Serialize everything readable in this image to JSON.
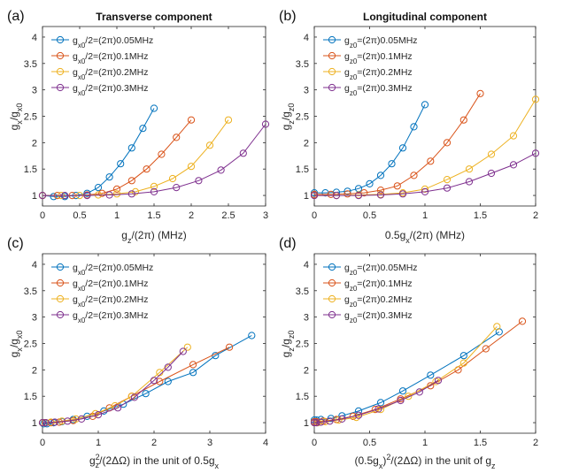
{
  "colors": [
    "#0072BD",
    "#D95319",
    "#EDB120",
    "#7E2F8E"
  ],
  "chart_data": [
    {
      "panel": "(a)",
      "type": "line",
      "title": "Transverse component",
      "xlabel": "g_z/(2π) (MHz)",
      "ylabel": "g_x/g_x0",
      "xlim": [
        0,
        3
      ],
      "ylim": [
        0.8,
        4.2
      ],
      "xticks": [
        0,
        0.5,
        1,
        1.5,
        2,
        2.5,
        3
      ],
      "xtick_labels": [
        "0",
        "0.5",
        "1",
        "1.5",
        "2",
        "2.5",
        "3"
      ],
      "yticks": [
        1,
        1.5,
        2,
        2.5,
        3,
        3.5,
        4
      ],
      "ytick_labels": [
        "1",
        "1.5",
        "2",
        "2.5",
        "3",
        "3.5",
        "4"
      ],
      "legend_position": "top-left",
      "series": [
        {
          "name": "g_x0/2=(2π)0.05MHz",
          "x": [
            0,
            0.15,
            0.3,
            0.45,
            0.6,
            0.75,
            0.9,
            1.05,
            1.2,
            1.35,
            1.5
          ],
          "y": [
            1,
            0.98,
            0.98,
            1.0,
            1.04,
            1.15,
            1.35,
            1.6,
            1.9,
            2.27,
            2.65
          ]
        },
        {
          "name": "g_x0/2=(2π)0.1MHz",
          "x": [
            0,
            0.2,
            0.4,
            0.6,
            0.8,
            1.0,
            1.2,
            1.4,
            1.6,
            1.8,
            2.0
          ],
          "y": [
            1,
            1.0,
            1.0,
            1.01,
            1.04,
            1.12,
            1.28,
            1.5,
            1.78,
            2.1,
            2.43
          ]
        },
        {
          "name": "g_x0/2=(2π)0.2MHz",
          "x": [
            0,
            0.25,
            0.5,
            0.75,
            1.0,
            1.25,
            1.5,
            1.75,
            2.0,
            2.25,
            2.5
          ],
          "y": [
            1,
            1.0,
            1.0,
            1.01,
            1.03,
            1.07,
            1.17,
            1.32,
            1.55,
            1.95,
            2.43
          ]
        },
        {
          "name": "g_x0/2=(2π)0.3MHz",
          "x": [
            0,
            0.3,
            0.6,
            0.9,
            1.2,
            1.5,
            1.8,
            2.1,
            2.4,
            2.7,
            3.0
          ],
          "y": [
            1,
            1.0,
            1.0,
            1.01,
            1.03,
            1.07,
            1.15,
            1.28,
            1.48,
            1.8,
            2.35
          ]
        }
      ]
    },
    {
      "panel": "(b)",
      "type": "line",
      "title": "Longitudinal component",
      "xlabel": "0.5g_x/(2π) (MHz)",
      "ylabel": "g_z/g_z0",
      "xlim": [
        0,
        2
      ],
      "ylim": [
        0.8,
        4.2
      ],
      "xticks": [
        0,
        0.5,
        1,
        1.5,
        2
      ],
      "xtick_labels": [
        "0",
        "0.5",
        "1",
        "1.5",
        "2"
      ],
      "yticks": [
        1,
        1.5,
        2,
        2.5,
        3,
        3.5,
        4
      ],
      "ytick_labels": [
        "1",
        "1.5",
        "2",
        "2.5",
        "3",
        "3.5",
        "4"
      ],
      "legend_position": "top-left",
      "series": [
        {
          "name": "g_z0=(2π)0.05MHz",
          "x": [
            0,
            0.1,
            0.2,
            0.3,
            0.4,
            0.5,
            0.6,
            0.7,
            0.8,
            0.9,
            1.0
          ],
          "y": [
            1.05,
            1.05,
            1.06,
            1.08,
            1.13,
            1.22,
            1.38,
            1.6,
            1.9,
            2.3,
            2.72
          ]
        },
        {
          "name": "g_z0=(2π)0.1MHz",
          "x": [
            0,
            0.15,
            0.3,
            0.45,
            0.6,
            0.75,
            0.9,
            1.05,
            1.2,
            1.35,
            1.5
          ],
          "y": [
            1.02,
            1.02,
            1.03,
            1.05,
            1.1,
            1.18,
            1.38,
            1.65,
            2.0,
            2.43,
            2.93
          ]
        },
        {
          "name": "g_z0=(2π)0.2MHz",
          "x": [
            0,
            0.2,
            0.4,
            0.6,
            0.8,
            1.0,
            1.2,
            1.4,
            1.6,
            1.8,
            2.0
          ],
          "y": [
            1.0,
            1.0,
            1.01,
            1.02,
            1.05,
            1.12,
            1.3,
            1.5,
            1.78,
            2.13,
            2.82
          ]
        },
        {
          "name": "g_z0=(2π)0.3MHz",
          "x": [
            0,
            0.2,
            0.4,
            0.6,
            0.8,
            1.0,
            1.2,
            1.4,
            1.6,
            1.8,
            2.0
          ],
          "y": [
            1.0,
            1.0,
            1.0,
            1.01,
            1.03,
            1.07,
            1.14,
            1.26,
            1.42,
            1.58,
            1.8
          ]
        }
      ]
    },
    {
      "panel": "(c)",
      "type": "line",
      "title": "",
      "xlabel": "g_z^2/(2ΔΩ)  in the unit of 0.5g_x",
      "ylabel": "g_x/g_x0",
      "xlim": [
        0,
        4
      ],
      "ylim": [
        0.8,
        4.2
      ],
      "xticks": [
        0,
        1,
        2,
        3,
        4
      ],
      "xtick_labels": [
        "0",
        "1",
        "2",
        "3",
        "4"
      ],
      "yticks": [
        1,
        1.5,
        2,
        2.5,
        3,
        3.5,
        4
      ],
      "ytick_labels": [
        "1",
        "1.5",
        "2",
        "2.5",
        "3",
        "3.5",
        "4"
      ],
      "legend_position": "top-left",
      "series": [
        {
          "name": "g_x0/2=(2π)0.05MHz",
          "x": [
            0,
            0.02,
            0.08,
            0.2,
            0.35,
            0.55,
            0.8,
            1.1,
            1.45,
            1.85,
            2.25,
            2.7,
            3.1,
            3.75
          ],
          "y": [
            1,
            0.98,
            0.98,
            1.0,
            1.02,
            1.06,
            1.12,
            1.22,
            1.35,
            1.55,
            1.78,
            1.95,
            2.27,
            2.65
          ]
        },
        {
          "name": "g_x0/2=(2π)0.1MHz",
          "x": [
            0,
            0.05,
            0.15,
            0.3,
            0.55,
            0.9,
            1.2,
            1.6,
            2.1,
            2.7,
            3.35
          ],
          "y": [
            1,
            1.0,
            1.0,
            1.01,
            1.04,
            1.12,
            1.28,
            1.5,
            1.78,
            2.1,
            2.43
          ]
        },
        {
          "name": "g_x0/2=(2π)0.2MHz",
          "x": [
            0,
            0.05,
            0.15,
            0.35,
            0.6,
            0.95,
            1.3,
            1.6,
            2.1,
            2.6
          ],
          "y": [
            1,
            1.0,
            1.01,
            1.03,
            1.07,
            1.17,
            1.32,
            1.5,
            1.95,
            2.43
          ]
        },
        {
          "name": "g_x0/2=(2π)0.3MHz",
          "x": [
            0,
            0.06,
            0.22,
            0.45,
            0.7,
            1.0,
            1.35,
            1.65,
            2.0,
            2.25,
            2.52
          ],
          "y": [
            1,
            1.0,
            1.01,
            1.03,
            1.07,
            1.15,
            1.28,
            1.48,
            1.8,
            2.05,
            2.35
          ]
        }
      ]
    },
    {
      "panel": "(d)",
      "type": "line",
      "title": "",
      "xlabel": "(0.5g_x)^2/(2ΔΩ) in the unit of g_z",
      "ylabel": "g_z/g_z0",
      "xlim": [
        0,
        2
      ],
      "ylim": [
        0.8,
        4.2
      ],
      "xticks": [
        0,
        0.5,
        1,
        1.5,
        2
      ],
      "xtick_labels": [
        "0",
        "0.5",
        "1",
        "1.5",
        "2"
      ],
      "yticks": [
        1,
        1.5,
        2,
        2.5,
        3,
        3.5,
        4
      ],
      "ytick_labels": [
        "1",
        "1.5",
        "2",
        "2.5",
        "3",
        "3.5",
        "4"
      ],
      "legend_position": "top-left",
      "series": [
        {
          "name": "g_z0=(2π)0.05MHz",
          "x": [
            0,
            0.02,
            0.06,
            0.15,
            0.25,
            0.4,
            0.6,
            0.8,
            1.05,
            1.35,
            1.67
          ],
          "y": [
            1.05,
            1.05,
            1.06,
            1.08,
            1.13,
            1.22,
            1.38,
            1.6,
            1.9,
            2.27,
            2.72
          ]
        },
        {
          "name": "g_z0=(2π)0.1MHz",
          "x": [
            0,
            0.02,
            0.08,
            0.2,
            0.35,
            0.55,
            0.78,
            1.05,
            1.3,
            1.55,
            1.88
          ],
          "y": [
            1.02,
            1.02,
            1.03,
            1.06,
            1.12,
            1.25,
            1.45,
            1.7,
            2.0,
            2.4,
            2.92
          ]
        },
        {
          "name": "g_z0=(2π)0.2MHz",
          "x": [
            0,
            0.03,
            0.1,
            0.22,
            0.38,
            0.6,
            0.85,
            1.1,
            1.35,
            1.65
          ],
          "y": [
            1.0,
            1.0,
            1.02,
            1.05,
            1.1,
            1.25,
            1.5,
            1.78,
            2.13,
            2.82
          ]
        },
        {
          "name": "g_z0=(2π)0.3MHz",
          "x": [
            0,
            0.02,
            0.06,
            0.14,
            0.25,
            0.4,
            0.58,
            0.78,
            0.95,
            1.12
          ],
          "y": [
            1.0,
            1.0,
            1.01,
            1.03,
            1.07,
            1.14,
            1.26,
            1.42,
            1.58,
            1.8
          ]
        }
      ]
    }
  ]
}
